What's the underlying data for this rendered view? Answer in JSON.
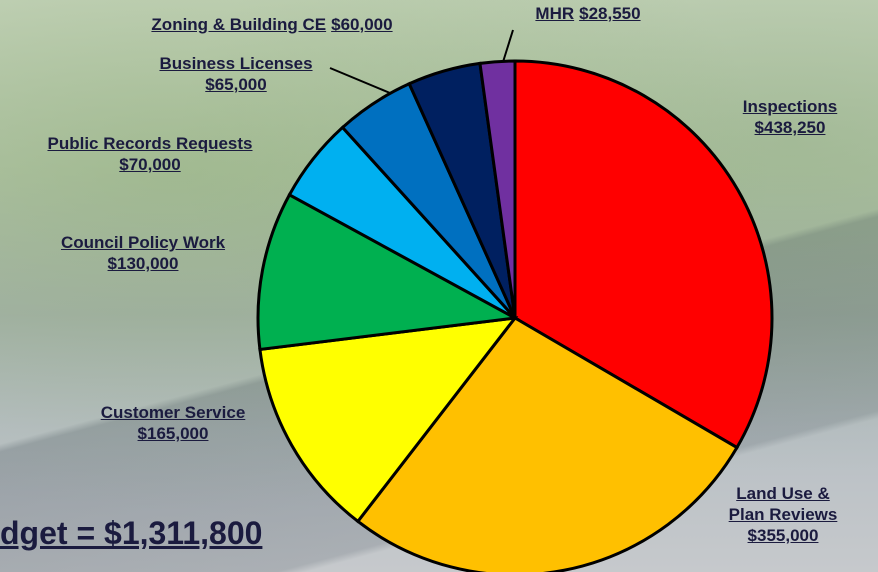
{
  "chart_data": {
    "type": "pie",
    "categories": [
      "Inspections",
      "Land Use & Plan Reviews",
      "Customer Service",
      "Council Policy Work",
      "Public Records Requests",
      "Business Licenses",
      "Zoning & Building CE",
      "MHR"
    ],
    "values": [
      438250,
      355000,
      165000,
      130000,
      70000,
      65000,
      60000,
      28550
    ],
    "value_labels": [
      "$438,250",
      "$355,000",
      "$165,000",
      "$130,000",
      "$70,000",
      "$65,000",
      "$60,000",
      "$28,550"
    ],
    "colors": [
      "#ff0000",
      "#ffc000",
      "#ffff00",
      "#00b050",
      "#00b0f0",
      "#0070c0",
      "#002060",
      "#7030a0"
    ],
    "annotation": "dget = $1,311,800"
  }
}
